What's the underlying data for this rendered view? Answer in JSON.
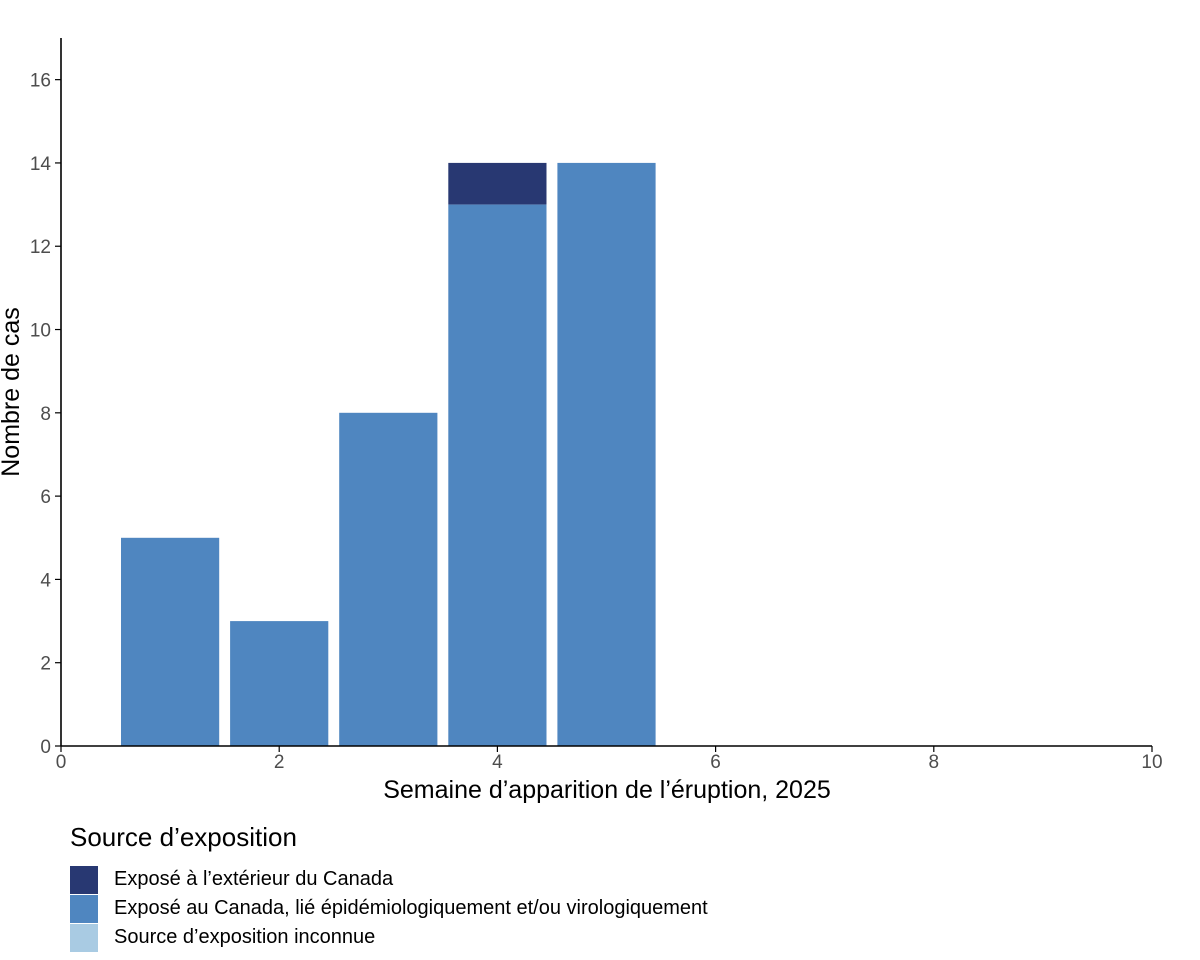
{
  "chart_data": {
    "type": "bar",
    "stacked": true,
    "xlabel": "Semaine d’apparition de l’éruption, 2025",
    "ylabel": "Nombre de cas",
    "xlim": [
      0,
      10
    ],
    "ylim": [
      0,
      17
    ],
    "xticks": [
      0,
      2,
      4,
      6,
      8,
      10
    ],
    "yticks": [
      0,
      2,
      4,
      6,
      8,
      10,
      12,
      14,
      16
    ],
    "grid": false,
    "legend_position": "bottom",
    "legend_title": "Source d’exposition",
    "x": [
      1,
      2,
      3,
      4,
      5
    ],
    "series": [
      {
        "name": "Exposé au Canada, lié épidémiologiquement et/ou virologiquement",
        "color": "#4f86c0",
        "values": [
          5,
          3,
          8,
          13,
          14
        ]
      },
      {
        "name": "Exposé à l’extérieur du Canada",
        "color": "#283872",
        "values": [
          0,
          0,
          0,
          1,
          0
        ]
      },
      {
        "name": "Source d’exposition inconnue",
        "color": "#a9cbe3",
        "values": [
          0,
          0,
          0,
          0,
          0
        ]
      }
    ],
    "legend_order": [
      1,
      0,
      2
    ]
  }
}
